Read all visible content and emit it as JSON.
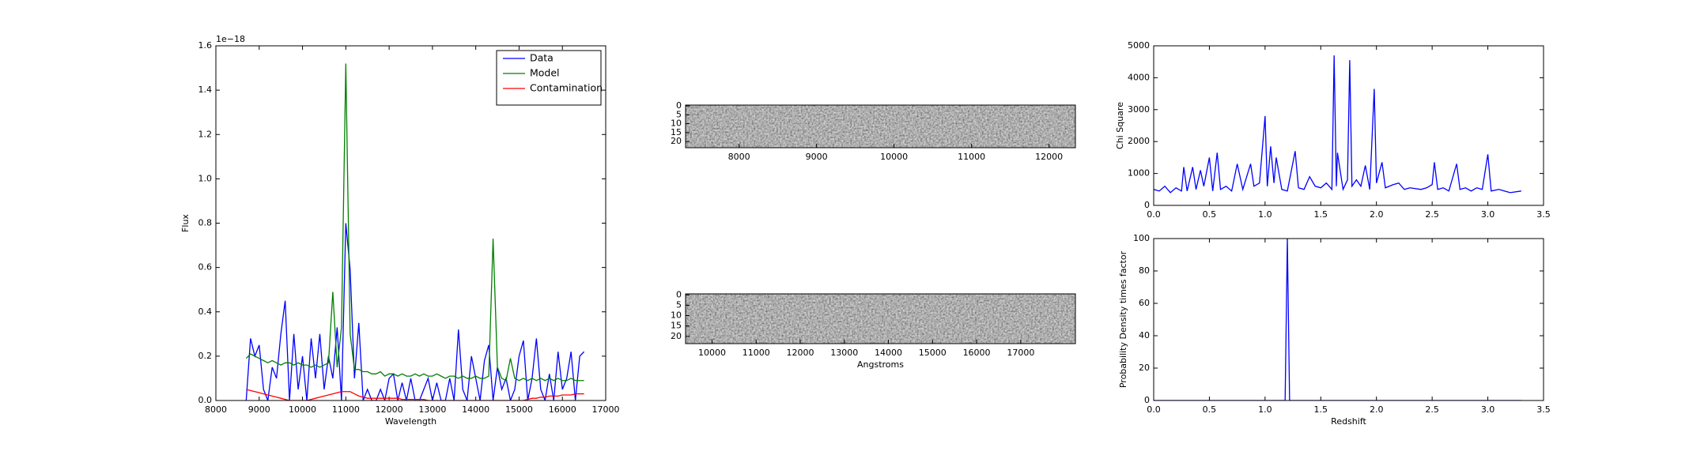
{
  "chart_data": [
    {
      "type": "line",
      "xlabel": "Wavelength",
      "ylabel": "Flux",
      "offset_text": "1e−18",
      "x": [
        8700,
        8800,
        8900,
        9000,
        9100,
        9200,
        9300,
        9400,
        9500,
        9600,
        9700,
        9800,
        9900,
        10000,
        10100,
        10200,
        10300,
        10400,
        10500,
        10600,
        10700,
        10800,
        10900,
        11000,
        11100,
        11200,
        11300,
        11400,
        11500,
        11600,
        11700,
        11800,
        11900,
        12000,
        12100,
        12200,
        12300,
        12400,
        12500,
        12600,
        12700,
        12800,
        12900,
        13000,
        13100,
        13200,
        13300,
        13400,
        13500,
        13600,
        13700,
        13800,
        13900,
        14000,
        14100,
        14200,
        14300,
        14400,
        14500,
        14600,
        14700,
        14800,
        14900,
        15000,
        15100,
        15200,
        15300,
        15400,
        15500,
        15600,
        15700,
        15800,
        15900,
        16000,
        16100,
        16200,
        16300,
        16400,
        16500
      ],
      "series": [
        {
          "name": "Data",
          "color": "#0000ff",
          "values": [
            0,
            0.28,
            0.2,
            0.25,
            0.05,
            0,
            0.15,
            0.1,
            0.3,
            0.45,
            0,
            0.3,
            0.05,
            0.2,
            0,
            0.28,
            0.1,
            0.3,
            0.05,
            0.2,
            0.1,
            0.33,
            0,
            0.8,
            0.59,
            0.1,
            0.35,
            0,
            0.05,
            0,
            0,
            0.05,
            0,
            0.1,
            0.12,
            0,
            0.08,
            0,
            0.1,
            0,
            0,
            0.05,
            0.1,
            0,
            0.08,
            0,
            0,
            0.1,
            0,
            0.32,
            0.05,
            0,
            0.2,
            0.1,
            0,
            0.18,
            0.25,
            0,
            0.15,
            0.05,
            0.1,
            0,
            0.05,
            0.2,
            0.27,
            0,
            0.1,
            0.28,
            0.05,
            0,
            0.12,
            0,
            0.22,
            0.05,
            0.1,
            0.22,
            0,
            0.2,
            0.22
          ]
        },
        {
          "name": "Model",
          "color": "#008000",
          "values": [
            0.19,
            0.21,
            0.2,
            0.19,
            0.18,
            0.17,
            0.18,
            0.17,
            0.16,
            0.17,
            0.17,
            0.16,
            0.17,
            0.16,
            0.16,
            0.15,
            0.16,
            0.15,
            0.16,
            0.17,
            0.49,
            0.15,
            0.33,
            1.52,
            0.3,
            0.14,
            0.14,
            0.13,
            0.13,
            0.12,
            0.12,
            0.13,
            0.11,
            0.12,
            0.12,
            0.11,
            0.12,
            0.11,
            0.11,
            0.12,
            0.11,
            0.12,
            0.11,
            0.11,
            0.12,
            0.11,
            0.1,
            0.11,
            0.11,
            0.1,
            0.11,
            0.1,
            0.1,
            0.11,
            0.1,
            0.1,
            0.11,
            0.73,
            0.15,
            0.1,
            0.09,
            0.19,
            0.1,
            0.09,
            0.1,
            0.09,
            0.1,
            0.09,
            0.1,
            0.09,
            0.1,
            0.09,
            0.1,
            0.09,
            0.09,
            0.1,
            0.09,
            0.09,
            0.09
          ]
        },
        {
          "name": "Contamination",
          "color": "#ff0000",
          "values": [
            0.05,
            0.045,
            0.04,
            0.035,
            0.03,
            0.025,
            0.02,
            0.015,
            0.01,
            0.005,
            0,
            0,
            0,
            0,
            0,
            0.005,
            0.01,
            0.015,
            0.02,
            0.025,
            0.03,
            0.035,
            0.04,
            0.04,
            0.04,
            0.03,
            0.02,
            0.015,
            0.01,
            0.01,
            0.01,
            0.01,
            0.01,
            0.01,
            0.01,
            0.01,
            0.005,
            0.005,
            0.005,
            0.005,
            0.005,
            0.005,
            0,
            0,
            0,
            0,
            0,
            0,
            0,
            0,
            0,
            0,
            0,
            0,
            0,
            0,
            0,
            0,
            0,
            0,
            0,
            0,
            0,
            0,
            0,
            0.005,
            0.01,
            0.01,
            0.015,
            0.015,
            0.02,
            0.02,
            0.02,
            0.025,
            0.025,
            0.025,
            0.03,
            0.03,
            0.03
          ]
        }
      ],
      "xlim": [
        8000,
        17000
      ],
      "xticks": [
        8000,
        9000,
        10000,
        11000,
        12000,
        13000,
        14000,
        15000,
        16000,
        17000
      ],
      "ylim": [
        0,
        1.6
      ],
      "yticks": [
        {
          "value": 0,
          "label": "0.0"
        },
        0.2,
        0.4,
        0.6,
        0.8,
        {
          "value": 1,
          "label": "1.0"
        },
        1.2,
        1.4,
        1.6
      ],
      "legend": "upper right"
    },
    {
      "type": "image",
      "xlim": [
        7310,
        12340
      ],
      "xticks": [
        8000,
        9000,
        10000,
        11000,
        12000
      ],
      "ylim": [
        23.5,
        -0.5
      ],
      "yticks": [
        0,
        5,
        10,
        15,
        20
      ]
    },
    {
      "type": "image",
      "xlabel": "Angstroms",
      "xlim": [
        9400,
        18240
      ],
      "xticks": [
        10000,
        11000,
        12000,
        13000,
        14000,
        15000,
        16000,
        17000
      ],
      "ylim": [
        23.5,
        -0.5
      ],
      "yticks": [
        0,
        5,
        10,
        15,
        20
      ]
    },
    {
      "type": "line",
      "ylabel": "Chi Square",
      "color": "#0000ff",
      "x": [
        0,
        0.05,
        0.1,
        0.15,
        0.2,
        0.25,
        0.27,
        0.3,
        0.35,
        0.38,
        0.42,
        0.45,
        0.5,
        0.53,
        0.57,
        0.6,
        0.65,
        0.7,
        0.75,
        0.8,
        0.87,
        0.9,
        0.95,
        1.0,
        1.02,
        1.05,
        1.08,
        1.1,
        1.15,
        1.2,
        1.27,
        1.3,
        1.35,
        1.4,
        1.45,
        1.5,
        1.55,
        1.6,
        1.62,
        1.64,
        1.65,
        1.7,
        1.74,
        1.76,
        1.78,
        1.82,
        1.86,
        1.9,
        1.94,
        1.98,
        2.0,
        2.05,
        2.08,
        2.15,
        2.2,
        2.25,
        2.3,
        2.4,
        2.45,
        2.5,
        2.52,
        2.55,
        2.6,
        2.65,
        2.72,
        2.75,
        2.8,
        2.85,
        2.9,
        2.95,
        3.0,
        3.03,
        3.1,
        3.2,
        3.3
      ],
      "values": [
        500,
        450,
        600,
        400,
        550,
        450,
        1200,
        450,
        1200,
        500,
        1100,
        600,
        1500,
        450,
        1650,
        500,
        600,
        450,
        1300,
        500,
        1300,
        600,
        700,
        2800,
        600,
        1850,
        700,
        1500,
        500,
        450,
        1700,
        550,
        500,
        900,
        600,
        550,
        700,
        500,
        4700,
        600,
        1650,
        500,
        800,
        4550,
        600,
        800,
        600,
        1250,
        500,
        3650,
        700,
        1350,
        550,
        650,
        700,
        500,
        550,
        500,
        550,
        650,
        1350,
        500,
        550,
        450,
        1300,
        500,
        550,
        450,
        550,
        500,
        1600,
        450,
        500,
        400,
        450
      ],
      "xlim": [
        0,
        3.5
      ],
      "xticks": [
        {
          "value": 0,
          "label": "0.0"
        },
        0.5,
        {
          "value": 1,
          "label": "1.0"
        },
        1.5,
        {
          "value": 2,
          "label": "2.0"
        },
        2.5,
        {
          "value": 3,
          "label": "3.0"
        },
        3.5
      ],
      "ylim": [
        0,
        5000
      ],
      "yticks": [
        0,
        1000,
        2000,
        3000,
        4000,
        5000
      ]
    },
    {
      "type": "line",
      "xlabel": "Redshift",
      "ylabel": "Probability Density times factor",
      "color": "#0000ff",
      "x": [
        0,
        1.18,
        1.2,
        1.22,
        3.3
      ],
      "values": [
        0,
        0,
        100,
        0,
        0
      ],
      "xlim": [
        0,
        3.5
      ],
      "xticks": [
        {
          "value": 0,
          "label": "0.0"
        },
        0.5,
        {
          "value": 1,
          "label": "1.0"
        },
        1.5,
        {
          "value": 2,
          "label": "2.0"
        },
        2.5,
        {
          "value": 3,
          "label": "3.0"
        },
        3.5
      ],
      "ylim": [
        0,
        100
      ],
      "yticks": [
        0,
        20,
        40,
        60,
        80,
        100
      ]
    }
  ]
}
